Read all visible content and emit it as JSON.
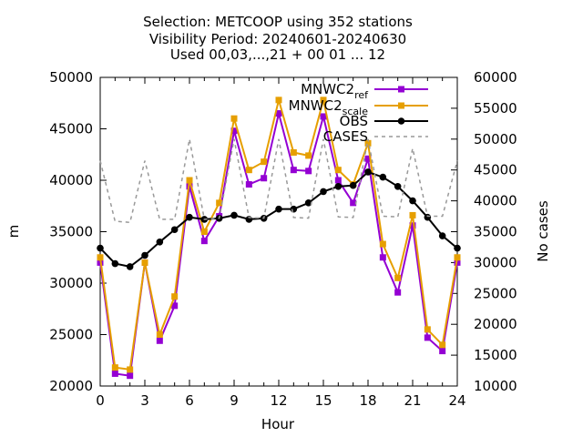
{
  "chart_data": {
    "type": "line",
    "title_lines": [
      "Selection: METCOOP using   352 stations",
      "Visibility   Period: 20240601-20240630",
      "Used 00,03,...,21 + 00 01 ... 12"
    ],
    "xlabel": "Hour",
    "ylabel": "m",
    "y2label": "No cases",
    "xlim": [
      0,
      24
    ],
    "ylim": [
      20000,
      50000
    ],
    "y2lim": [
      10000,
      60000
    ],
    "xticks": [
      "0",
      "3",
      "6",
      "9",
      "12",
      "15",
      "18",
      "21",
      "24"
    ],
    "yticks": [
      "20000",
      "25000",
      "30000",
      "35000",
      "40000",
      "45000",
      "50000"
    ],
    "y2ticks": [
      "10000",
      "15000",
      "20000",
      "25000",
      "30000",
      "35000",
      "40000",
      "45000",
      "50000",
      "55000",
      "60000"
    ],
    "grid": false,
    "legend_position": "top-right",
    "x": [
      0,
      1,
      2,
      3,
      4,
      5,
      6,
      7,
      8,
      9,
      10,
      11,
      12,
      13,
      14,
      15,
      16,
      17,
      18,
      19,
      20,
      21,
      22,
      23,
      24
    ],
    "series": [
      {
        "name": "MNWC2_ref",
        "legend_main": "MNWC2",
        "legend_sub": "ref",
        "color": "#9400d3",
        "axis": "y1",
        "marker": "square",
        "dash": false,
        "values": [
          32000,
          21200,
          21000,
          32000,
          24400,
          27800,
          39400,
          34100,
          36500,
          44800,
          39600,
          40200,
          46500,
          41000,
          40900,
          46200,
          40000,
          37800,
          42100,
          32500,
          29100,
          35600,
          24700,
          23400,
          32000
        ]
      },
      {
        "name": "MNWC2_scale",
        "legend_main": "MNWC2",
        "legend_sub": "scale",
        "color": "#e69f00",
        "axis": "y1",
        "marker": "square",
        "dash": false,
        "values": [
          32500,
          21800,
          21600,
          32000,
          25000,
          28700,
          40000,
          35000,
          37800,
          46000,
          41000,
          41800,
          47800,
          42700,
          42400,
          47800,
          41000,
          39600,
          43600,
          33800,
          30500,
          36600,
          25500,
          24000,
          32500
        ]
      },
      {
        "name": "OBS",
        "legend_main": "OBS",
        "legend_sub": "",
        "color": "#000000",
        "axis": "y1",
        "marker": "circle",
        "dash": false,
        "values": [
          33400,
          31900,
          31600,
          32700,
          34000,
          35200,
          36400,
          36200,
          36300,
          36600,
          36200,
          36300,
          37200,
          37200,
          37800,
          38900,
          39400,
          39500,
          40800,
          40300,
          39400,
          38000,
          36400,
          34600,
          33400
        ]
      },
      {
        "name": "CASES",
        "legend_main": "CASES",
        "legend_sub": "",
        "color": "#999999",
        "axis": "y2",
        "marker": "none",
        "dash": true,
        "values": [
          46500,
          36700,
          36500,
          46500,
          37000,
          37000,
          50000,
          37000,
          37200,
          50000,
          37300,
          37200,
          50000,
          37300,
          37200,
          50000,
          37400,
          37300,
          50000,
          37500,
          37400,
          48500,
          37500,
          37500,
          46500
        ]
      }
    ]
  }
}
